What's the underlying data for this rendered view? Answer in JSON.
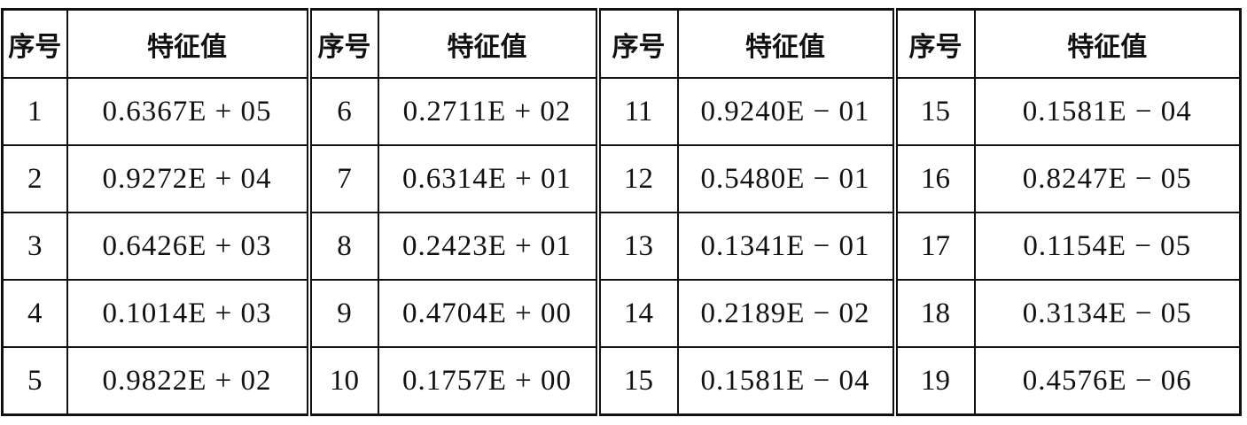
{
  "table": {
    "headers": [
      "序号",
      "特征值",
      "序号",
      "特征值",
      "序号",
      "特征值",
      "序号",
      "特征值"
    ],
    "rows": [
      [
        "1",
        "0.6367E + 05",
        "6",
        "0.2711E + 02",
        "11",
        "0.9240E − 01",
        "15",
        "0.1581E − 04"
      ],
      [
        "2",
        "0.9272E + 04",
        "7",
        "0.6314E + 01",
        "12",
        "0.5480E − 01",
        "16",
        "0.8247E − 05"
      ],
      [
        "3",
        "0.6426E + 03",
        "8",
        "0.2423E + 01",
        "13",
        "0.1341E − 01",
        "17",
        "0.1154E − 05"
      ],
      [
        "4",
        "0.1014E + 03",
        "9",
        "0.4704E + 00",
        "14",
        "0.2189E − 02",
        "18",
        "0.3134E − 05"
      ],
      [
        "5",
        "0.9822E + 02",
        "10",
        "0.1757E + 00",
        "15",
        "0.1581E − 04",
        "19",
        "0.4576E − 06"
      ]
    ]
  }
}
